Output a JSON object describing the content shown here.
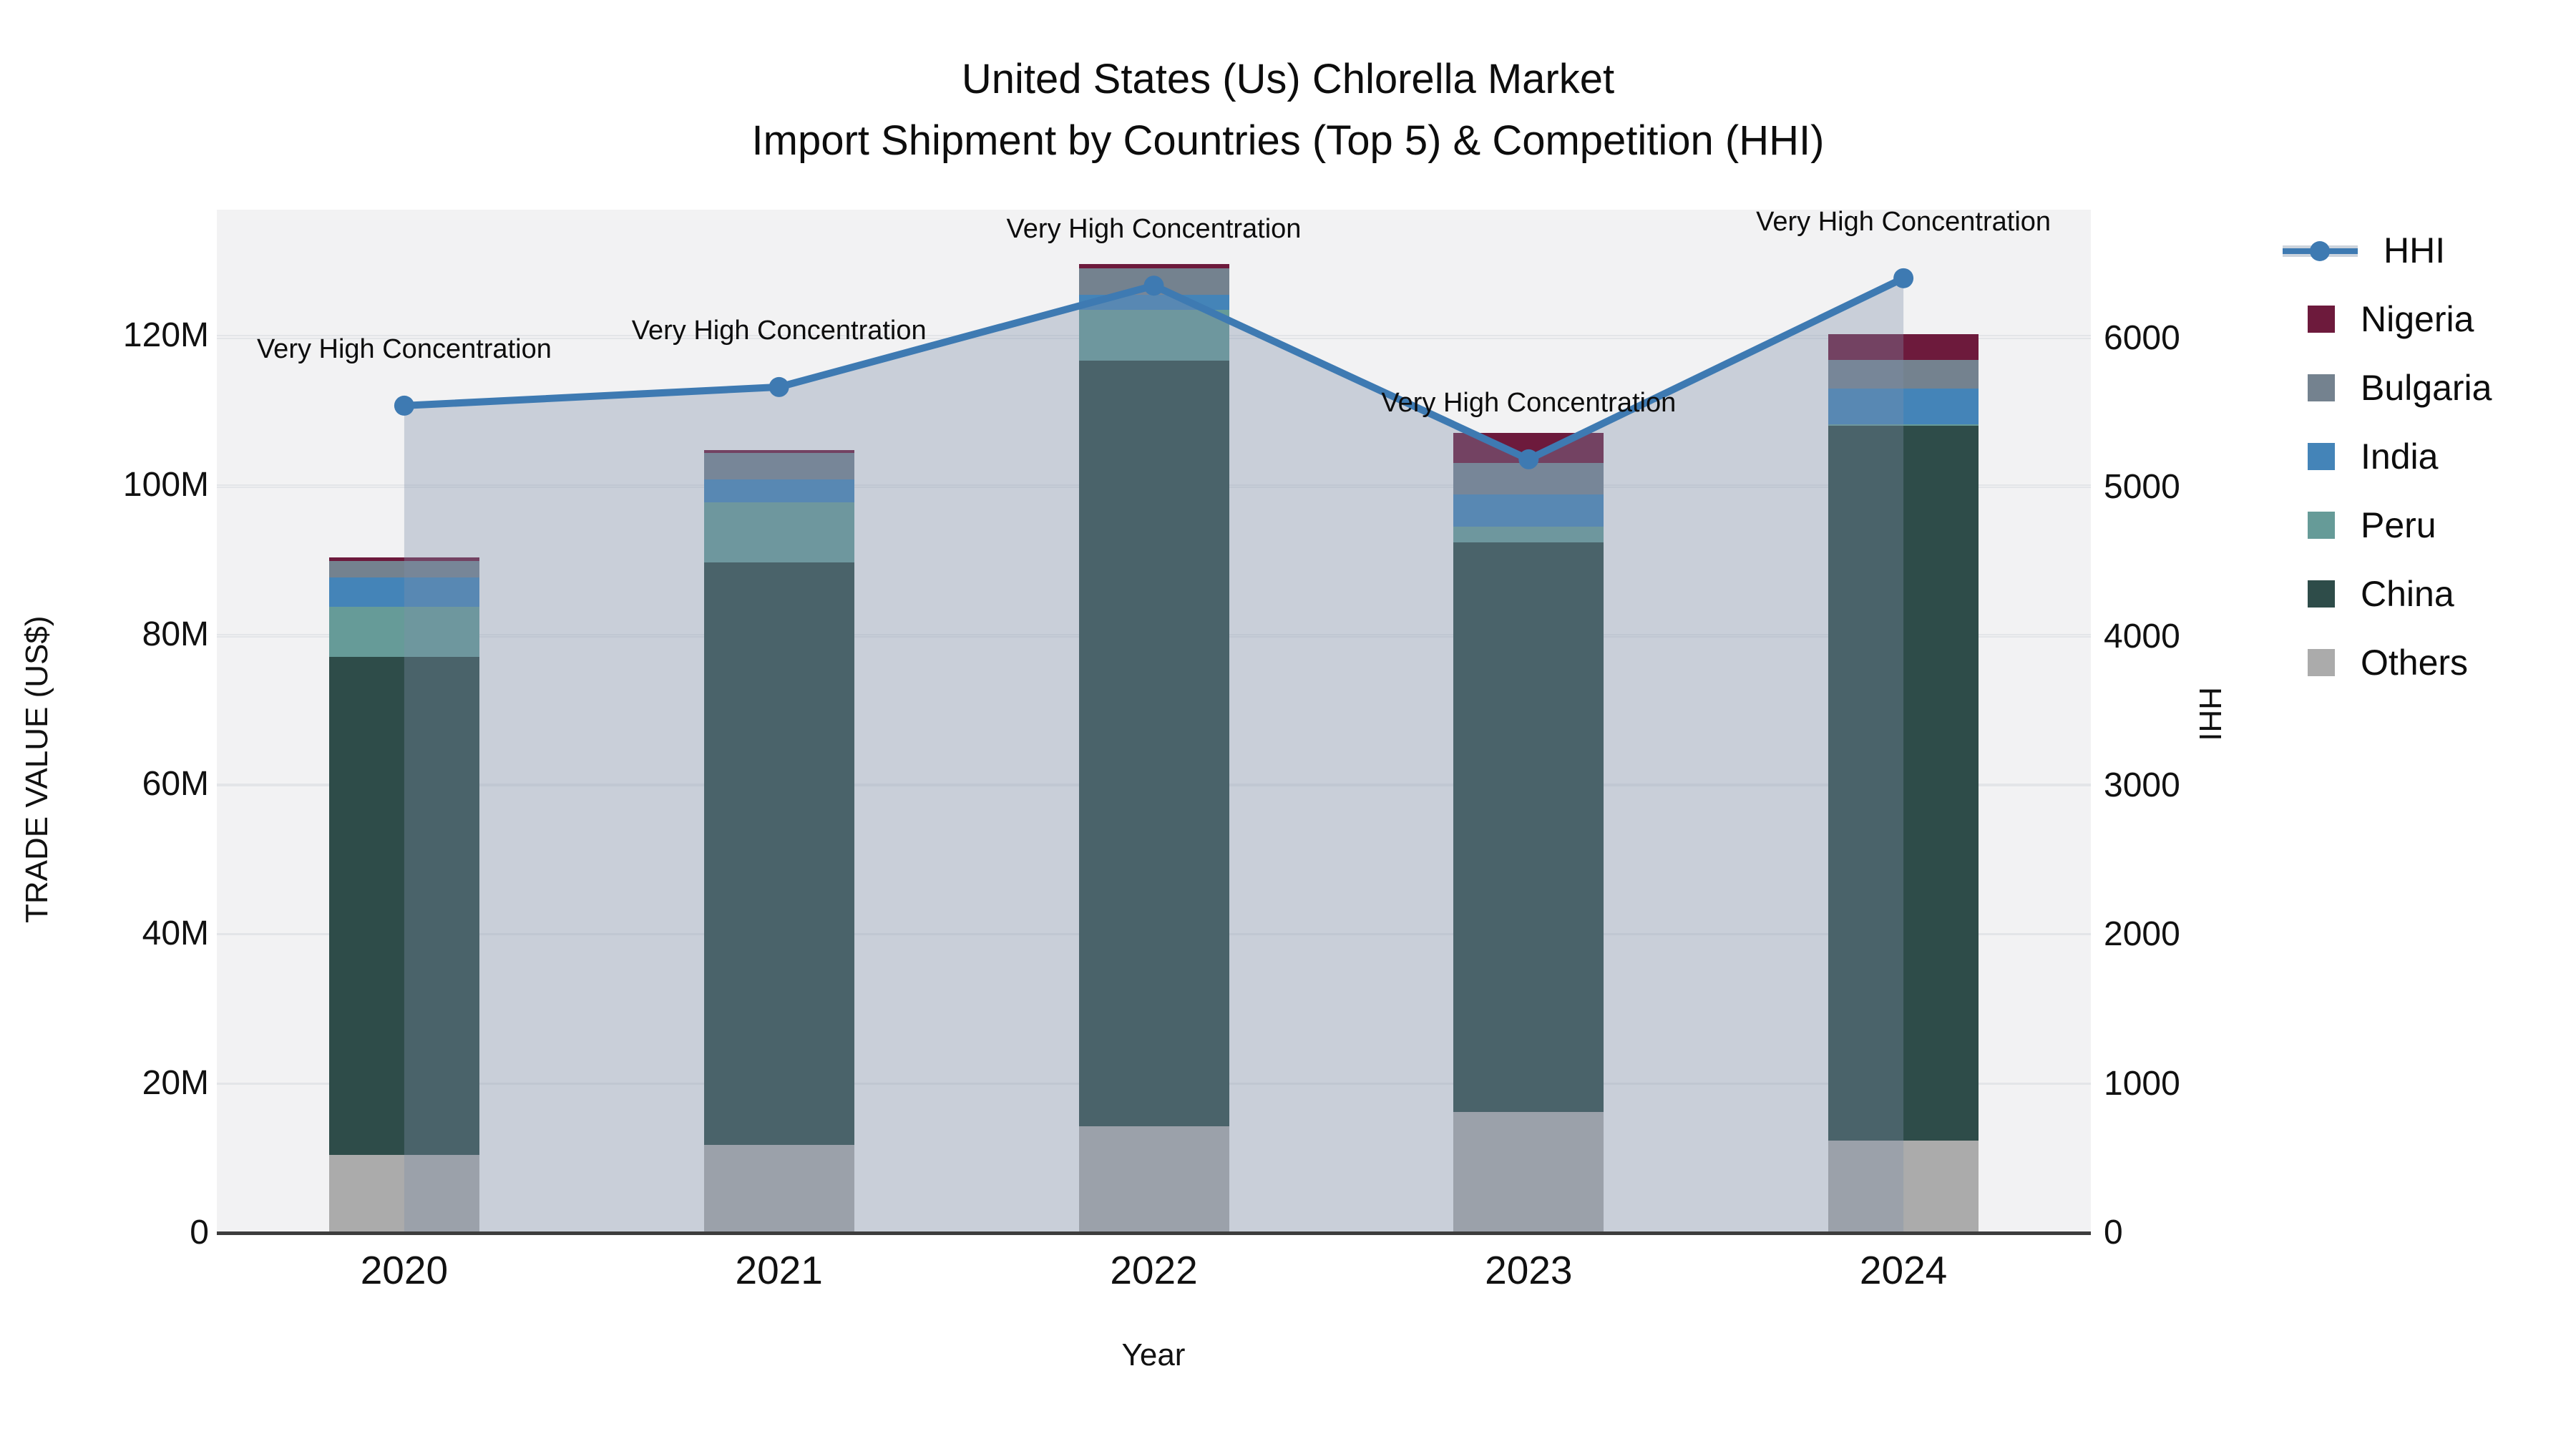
{
  "title": {
    "line1": "United States (Us) Chlorella Market",
    "line2": "Import Shipment by Countries (Top 5) & Competition (HHI)"
  },
  "chart_data": {
    "type": "bar",
    "subtype": "stacked bars with overlaid line+area (dual axis)",
    "categories": [
      "2020",
      "2021",
      "2022",
      "2023",
      "2024"
    ],
    "series": [
      {
        "name": "Others",
        "color": "#ababab",
        "values": [
          10.4,
          11.8,
          14.3,
          16.2,
          12.3
        ]
      },
      {
        "name": "China",
        "color": "#2e4c49",
        "values": [
          66.6,
          77.8,
          102.3,
          76.1,
          95.6
        ]
      },
      {
        "name": "Peru",
        "color": "#669b98",
        "values": [
          6.7,
          8.1,
          6.8,
          2.1,
          0.2
        ]
      },
      {
        "name": "India",
        "color": "#4484b8",
        "values": [
          3.9,
          3.0,
          2.0,
          4.3,
          4.8
        ]
      },
      {
        "name": "Bulgaria",
        "color": "#74828f",
        "values": [
          2.2,
          3.6,
          3.6,
          4.2,
          3.8
        ]
      },
      {
        "name": "Nigeria",
        "color": "#6d1a3c",
        "values": [
          0.5,
          0.4,
          0.5,
          4.1,
          3.5
        ]
      }
    ],
    "values_unit": "US$ millions",
    "line_series": {
      "name": "HHI",
      "axis": "right",
      "color": "#3e7ab2",
      "fill_color": "rgba(125,142,168,0.35)",
      "values": [
        5550,
        5675,
        6355,
        5190,
        6405
      ]
    },
    "annotations": [
      {
        "category": "2020",
        "text": "Very High Concentration"
      },
      {
        "category": "2021",
        "text": "Very High Concentration"
      },
      {
        "category": "2022",
        "text": "Very High Concentration"
      },
      {
        "category": "2023",
        "text": "Very High Concentration"
      },
      {
        "category": "2024",
        "text": "Very High Concentration"
      }
    ],
    "xlabel": "Year",
    "ylabel": "TRADE VALUE (US$)",
    "y2label": "HHI",
    "ylim": [
      0,
      136.8
    ],
    "y2lim": [
      0,
      6865
    ],
    "yticks": {
      "labels": [
        "0",
        "20M",
        "40M",
        "60M",
        "80M",
        "100M",
        "120M"
      ],
      "values": [
        0,
        20,
        40,
        60,
        80,
        100,
        120
      ]
    },
    "y2ticks": {
      "labels": [
        "0",
        "1000",
        "2000",
        "3000",
        "4000",
        "5000",
        "6000"
      ],
      "values": [
        0,
        1000,
        2000,
        3000,
        4000,
        5000,
        6000
      ]
    },
    "grid": true,
    "legend_position": "right"
  },
  "legend": {
    "items": [
      {
        "label": "HHI",
        "type": "line",
        "color": "#3e7ab2"
      },
      {
        "label": "Nigeria",
        "type": "swatch",
        "color": "#6d1a3c"
      },
      {
        "label": "Bulgaria",
        "type": "swatch",
        "color": "#74828f"
      },
      {
        "label": "India",
        "type": "swatch",
        "color": "#4484b8"
      },
      {
        "label": "Peru",
        "type": "swatch",
        "color": "#669b98"
      },
      {
        "label": "China",
        "type": "swatch",
        "color": "#2e4c49"
      },
      {
        "label": "Others",
        "type": "swatch",
        "color": "#ababab"
      }
    ]
  },
  "colors": {
    "plot_bg": "#f2f2f3",
    "grid": "#e3e5e8",
    "axis_line": "#3d3d3d",
    "text": "#0d0d0d"
  }
}
